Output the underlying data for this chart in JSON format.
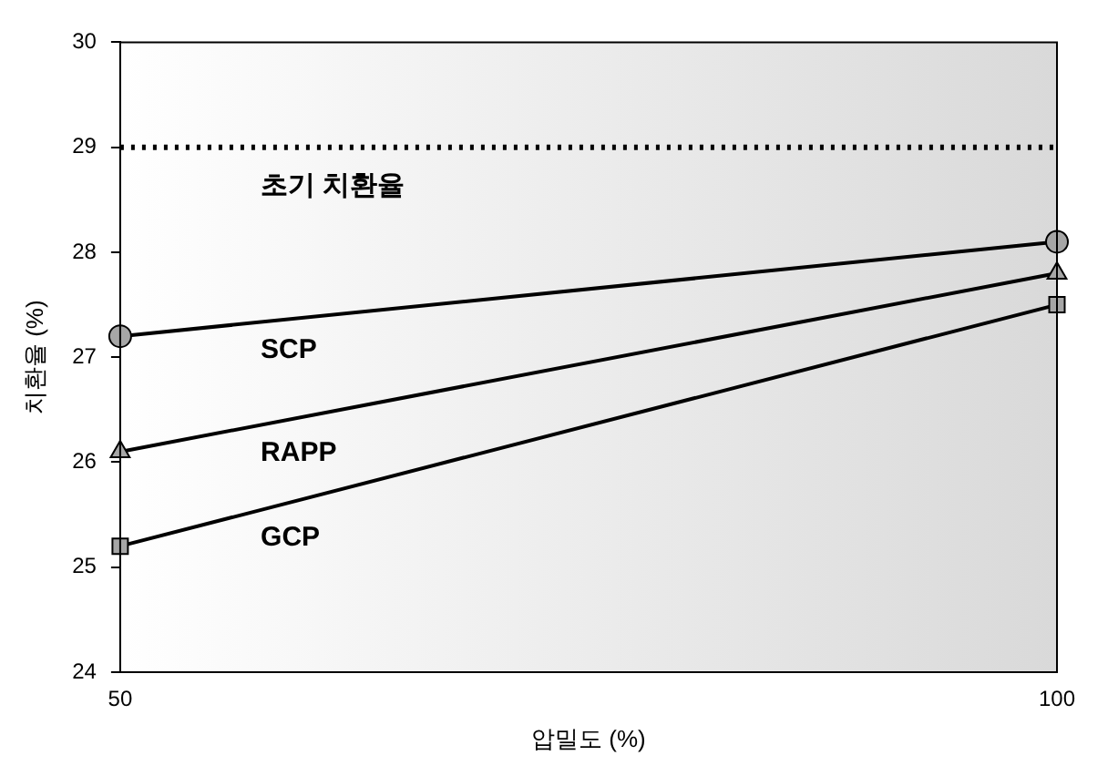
{
  "chart_data": {
    "type": "line",
    "xlabel": "압밀도 (%)",
    "ylabel": "치환율 (%)",
    "x": [
      50,
      100
    ],
    "series": [
      {
        "name": "SCP",
        "color": "#000000",
        "marker": "circle",
        "values": [
          27.2,
          28.1
        ]
      },
      {
        "name": "RAPP",
        "color": "#000000",
        "marker": "triangle",
        "values": [
          26.1,
          27.8
        ]
      },
      {
        "name": "GCP",
        "color": "#000000",
        "marker": "square",
        "values": [
          25.2,
          27.5
        ]
      }
    ],
    "xlim": [
      50,
      100
    ],
    "xticks": [
      50,
      100
    ],
    "ylim": [
      24,
      30
    ],
    "yticks": [
      24,
      25,
      26,
      27,
      28,
      29,
      30
    ],
    "ref_lines": [
      {
        "axis": "y",
        "value": 29,
        "label": "초기 치환율",
        "color": "#000000",
        "line_style": "dotted"
      }
    ],
    "grid": false,
    "legend": false,
    "line_style": "solid"
  }
}
